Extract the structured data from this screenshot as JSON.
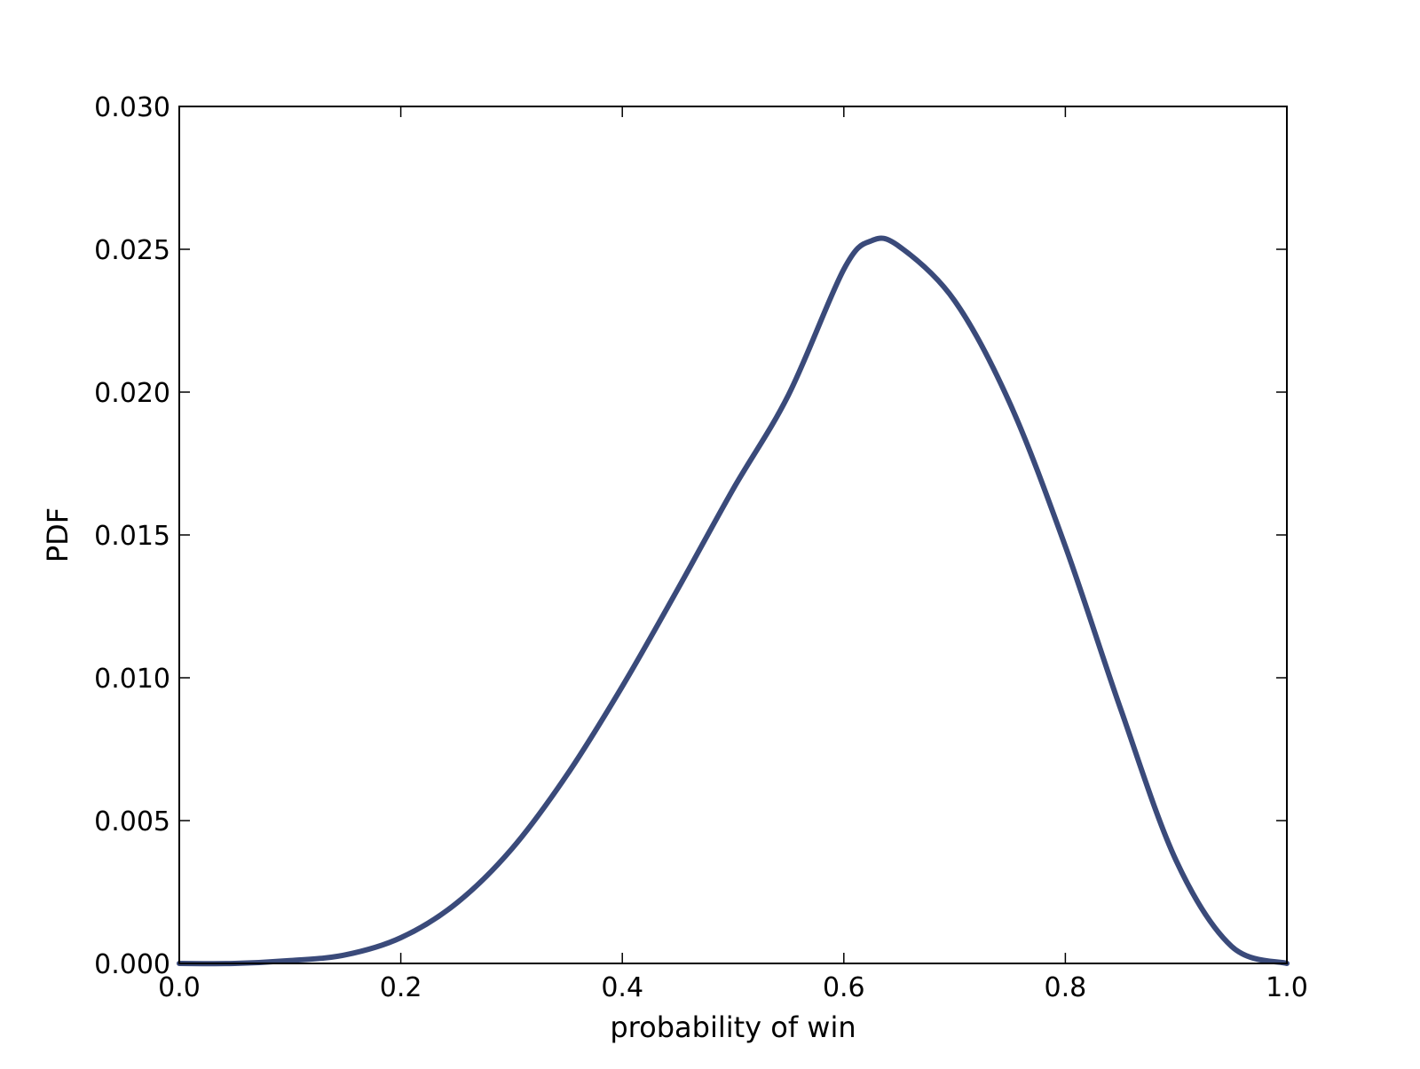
{
  "chart_data": {
    "type": "line",
    "xlabel": "probability of win",
    "ylabel": "PDF",
    "xlim": [
      0.0,
      1.0
    ],
    "ylim": [
      0.0,
      0.03
    ],
    "x_ticks": [
      "0.0",
      "0.2",
      "0.4",
      "0.6",
      "0.8",
      "1.0"
    ],
    "y_ticks": [
      "0.000",
      "0.005",
      "0.010",
      "0.015",
      "0.020",
      "0.025",
      "0.030"
    ],
    "grid": false,
    "legend": "none",
    "series": [
      {
        "color": "#3a4a7a",
        "x": [
          0.0,
          0.05,
          0.1,
          0.15,
          0.2,
          0.25,
          0.3,
          0.35,
          0.4,
          0.45,
          0.5,
          0.55,
          0.6,
          0.625,
          0.65,
          0.7,
          0.75,
          0.8,
          0.85,
          0.9,
          0.95,
          1.0
        ],
        "y": [
          0.0,
          0.0,
          0.0001,
          0.0003,
          0.0009,
          0.0021,
          0.004,
          0.0066,
          0.0097,
          0.0131,
          0.0166,
          0.0199,
          0.0243,
          0.0253,
          0.0251,
          0.0232,
          0.0196,
          0.0146,
          0.0089,
          0.0036,
          0.0006,
          0.0
        ]
      }
    ]
  }
}
